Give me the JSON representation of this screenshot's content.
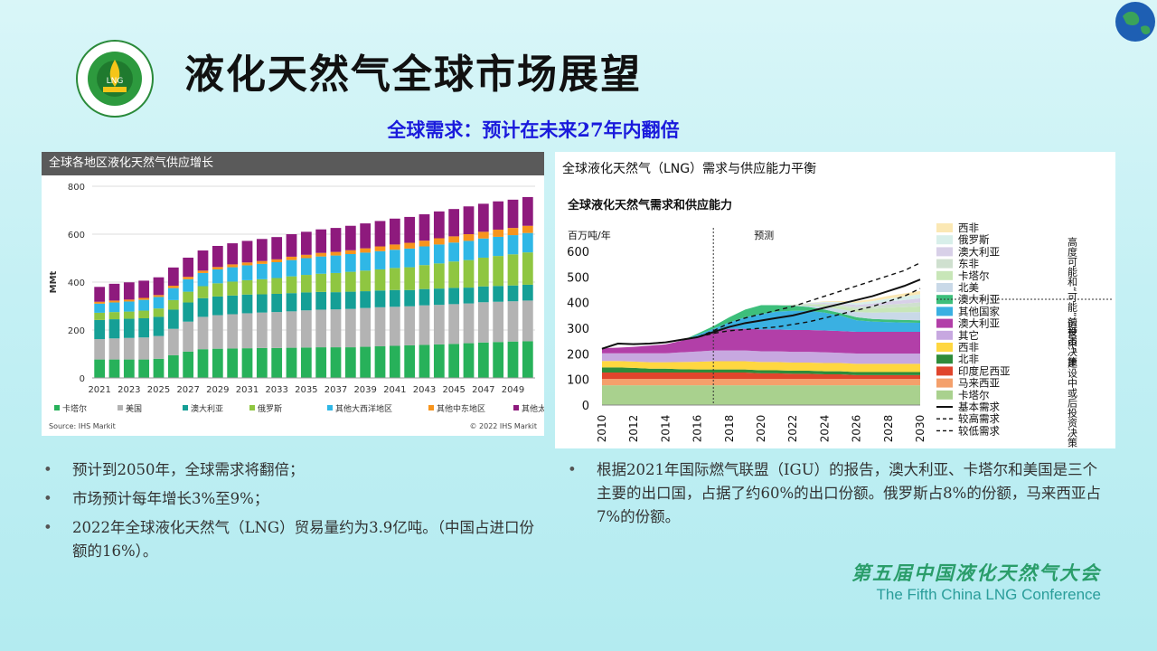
{
  "header": {
    "title": "液化天然气全球市场展望",
    "subtitle": "全球需求：预计在未来27年内翻倍"
  },
  "footer": {
    "conference_cn": "第五届中国液化天然气大会",
    "conference_en": "The Fifth China LNG Conference"
  },
  "left_bullets": [
    "预计到2050年，全球需求将翻倍；",
    "市场预计每年增长3%至9%；",
    "2022年全球液化天然气（LNG）贸易量约为3.9亿吨。（中国占进口份额的16%）。"
  ],
  "right_bullets": [
    "根据2021年国际燃气联盟（IGU）的报告，澳大利亚、卡塔尔和美国是三个主要的出口国，占据了约60%的出口份额。俄罗斯占8%的份额，马来西亚占7%的份额。"
  ],
  "colors": {
    "qatar": "#27b15a",
    "usa": "#b3b3b3",
    "australia": "#159f96",
    "russia": "#8fc641",
    "other_atlantic": "#2fb7e6",
    "other_mideast": "#f7941d",
    "other_asia_pacific": "#8e1a7d"
  },
  "chart_data": [
    {
      "type": "bar",
      "stacked": true,
      "title": "全球各地区液化天然气供应增长",
      "ylabel": "MMt",
      "ylim": [
        0,
        800
      ],
      "yticks": [
        0,
        200,
        400,
        600,
        800
      ],
      "categories": [
        "2021",
        "2022",
        "2023",
        "2024",
        "2025",
        "2026",
        "2027",
        "2028",
        "2029",
        "2030",
        "2031",
        "2032",
        "2033",
        "2034",
        "2035",
        "2036",
        "2037",
        "2038",
        "2039",
        "2040",
        "2041",
        "2042",
        "2043",
        "2044",
        "2045",
        "2046",
        "2047",
        "2048",
        "2049",
        "2050"
      ],
      "xticks": [
        "2021",
        "2023",
        "2025",
        "2027",
        "2029",
        "2031",
        "2033",
        "2035",
        "2037",
        "2039",
        "2041",
        "2043",
        "2045",
        "2047",
        "2049"
      ],
      "series": [
        {
          "name": "卡塔尔",
          "values": [
            77,
            77,
            77,
            77,
            80,
            95,
            110,
            120,
            122,
            123,
            124,
            125,
            125,
            126,
            127,
            128,
            128,
            128,
            130,
            132,
            134,
            136,
            138,
            140,
            142,
            145,
            148,
            150,
            152,
            153
          ]
        },
        {
          "name": "美国",
          "values": [
            85,
            88,
            90,
            92,
            95,
            110,
            125,
            135,
            140,
            143,
            146,
            148,
            150,
            152,
            155,
            157,
            158,
            160,
            162,
            163,
            163,
            163,
            165,
            165,
            166,
            166,
            168,
            168,
            168,
            170
          ]
        },
        {
          "name": "澳大利亚",
          "values": [
            80,
            80,
            80,
            80,
            80,
            80,
            80,
            78,
            78,
            78,
            78,
            76,
            76,
            76,
            75,
            74,
            72,
            72,
            70,
            70,
            70,
            68,
            68,
            68,
            68,
            66,
            66,
            66,
            66,
            66
          ]
        },
        {
          "name": "俄罗斯",
          "values": [
            30,
            30,
            30,
            32,
            35,
            40,
            45,
            50,
            55,
            58,
            60,
            63,
            66,
            70,
            73,
            76,
            80,
            83,
            86,
            88,
            92,
            95,
            100,
            105,
            110,
            115,
            120,
            125,
            130,
            135
          ]
        },
        {
          "name": "其他大西洋地区",
          "values": [
            38,
            40,
            42,
            45,
            48,
            50,
            52,
            55,
            58,
            60,
            62,
            64,
            66,
            68,
            70,
            72,
            73,
            74,
            75,
            76,
            76,
            78,
            78,
            79,
            79,
            80,
            80,
            80,
            80,
            81
          ]
        },
        {
          "name": "其他中东地区",
          "values": [
            8,
            8,
            8,
            8,
            8,
            10,
            10,
            10,
            10,
            12,
            12,
            12,
            12,
            14,
            14,
            15,
            15,
            16,
            18,
            20,
            22,
            24,
            24,
            26,
            26,
            28,
            28,
            30,
            30,
            30
          ]
        },
        {
          "name": "其他太平洋地区",
          "values": [
            62,
            70,
            72,
            72,
            74,
            76,
            80,
            84,
            88,
            88,
            90,
            92,
            93,
            94,
            96,
            98,
            100,
            102,
            104,
            106,
            108,
            108,
            110,
            112,
            114,
            116,
            117,
            118,
            118,
            120
          ]
        }
      ],
      "legend": [
        "卡塔尔",
        "美国",
        "澳大利亚",
        "俄罗斯",
        "其他大西洋地区",
        "其他中东地区",
        "其他太平洋地区"
      ],
      "source": "Source: IHS Markit",
      "copyright": "© 2022 IHS Markit"
    },
    {
      "type": "area",
      "stacked": true,
      "panel_title": "全球液化天然气（LNG）需求与供应能力平衡",
      "title": "全球液化天然气需求和供应能力",
      "ylabel": "百万吨/年",
      "ylim": [
        0,
        600
      ],
      "yticks": [
        0,
        100,
        200,
        300,
        400,
        500,
        600
      ],
      "x": [
        2010,
        2011,
        2012,
        2013,
        2014,
        2015,
        2016,
        2017,
        2018,
        2019,
        2020,
        2021,
        2022,
        2023,
        2024,
        2025,
        2026,
        2027,
        2028,
        2029,
        2030
      ],
      "xticks": [
        "2010",
        "2012",
        "2014",
        "2016",
        "2018",
        "2020",
        "2022",
        "2024",
        "2026",
        "2028",
        "2030"
      ],
      "forecast_label": "预测",
      "forecast_start": 2017,
      "group_labels": [
        "高度可能和“可能”前投资决策",
        "运营中，建设中或后投资决策"
      ],
      "series": [
        {
          "name": "卡塔尔",
          "color": "#a9d18e",
          "values": [
            77,
            77,
            77,
            77,
            77,
            77,
            77,
            77,
            77,
            77,
            77,
            77,
            77,
            77,
            77,
            77,
            77,
            77,
            77,
            77,
            77
          ]
        },
        {
          "name": "马来西亚",
          "color": "#f4a06b",
          "values": [
            25,
            25,
            25,
            25,
            25,
            25,
            25,
            25,
            25,
            25,
            25,
            25,
            25,
            25,
            25,
            25,
            25,
            25,
            25,
            25,
            25
          ]
        },
        {
          "name": "印度尼西亚",
          "color": "#e0452c",
          "values": [
            25,
            25,
            25,
            25,
            25,
            25,
            25,
            25,
            25,
            25,
            22,
            22,
            20,
            20,
            18,
            18,
            15,
            15,
            15,
            15,
            15
          ]
        },
        {
          "name": "北非",
          "color": "#2e8b3a",
          "values": [
            20,
            20,
            18,
            15,
            15,
            13,
            12,
            12,
            12,
            12,
            12,
            12,
            12,
            12,
            12,
            12,
            12,
            12,
            12,
            12,
            12
          ]
        },
        {
          "name": "西非",
          "color": "#ffd740",
          "values": [
            25,
            25,
            25,
            25,
            25,
            28,
            30,
            32,
            32,
            32,
            32,
            32,
            32,
            32,
            32,
            32,
            32,
            32,
            32,
            32,
            32
          ]
        },
        {
          "name": "其它",
          "color": "#c7a8e0",
          "values": [
            30,
            30,
            32,
            35,
            35,
            38,
            40,
            42,
            42,
            42,
            42,
            42,
            42,
            42,
            42,
            40,
            40,
            40,
            40,
            40,
            40
          ]
        },
        {
          "name": "澳大利亚",
          "color": "#b23fa8",
          "values": [
            20,
            22,
            25,
            30,
            35,
            45,
            60,
            75,
            85,
            85,
            85,
            85,
            85,
            85,
            85,
            85,
            85,
            85,
            85,
            85,
            85
          ]
        },
        {
          "name": "其他国家",
          "color": "#3ab0e2",
          "values": [
            0,
            0,
            0,
            0,
            0,
            0,
            5,
            10,
            25,
            45,
            60,
            70,
            75,
            75,
            70,
            60,
            45,
            40,
            38,
            36,
            35
          ]
        },
        {
          "name": "澳大利亚",
          "color": "#3dbf7b",
          "values": [
            0,
            0,
            0,
            0,
            0,
            0,
            5,
            10,
            20,
            30,
            35,
            25,
            20,
            15,
            12,
            10,
            12,
            10,
            10,
            10,
            10
          ]
        },
        {
          "name": "北美",
          "color": "#c9d9e8",
          "values": [
            0,
            0,
            0,
            0,
            0,
            0,
            0,
            0,
            0,
            0,
            0,
            0,
            2,
            5,
            10,
            15,
            20,
            25,
            28,
            30,
            32
          ]
        },
        {
          "name": "卡塔尔",
          "color": "#c8e6b8",
          "values": [
            0,
            0,
            0,
            0,
            0,
            0,
            0,
            0,
            0,
            0,
            0,
            0,
            2,
            5,
            8,
            10,
            12,
            15,
            18,
            20,
            22
          ]
        },
        {
          "name": "东非",
          "color": "#cfe0cf",
          "values": [
            0,
            0,
            0,
            0,
            0,
            0,
            0,
            0,
            0,
            0,
            0,
            0,
            0,
            2,
            4,
            6,
            8,
            10,
            12,
            14,
            16
          ]
        },
        {
          "name": "澳大利亚",
          "color": "#d8d0e8",
          "values": [
            0,
            0,
            0,
            0,
            0,
            0,
            0,
            0,
            0,
            0,
            0,
            0,
            0,
            2,
            4,
            6,
            8,
            10,
            12,
            14,
            16
          ]
        },
        {
          "name": "俄罗斯",
          "color": "#d8efea",
          "values": [
            0,
            0,
            0,
            0,
            0,
            0,
            0,
            0,
            0,
            0,
            0,
            0,
            0,
            2,
            4,
            6,
            8,
            10,
            12,
            14,
            16
          ]
        },
        {
          "name": "西非",
          "color": "#fbe8b4",
          "values": [
            0,
            0,
            0,
            0,
            0,
            0,
            0,
            0,
            0,
            0,
            0,
            0,
            0,
            0,
            2,
            4,
            6,
            8,
            10,
            12,
            12
          ]
        }
      ],
      "lines": [
        {
          "name": "基本需求",
          "style": "solid",
          "values": [
            220,
            240,
            238,
            240,
            245,
            255,
            265,
            285,
            305,
            320,
            330,
            340,
            350,
            365,
            380,
            395,
            410,
            425,
            445,
            465,
            490
          ]
        },
        {
          "name": "较高需求",
          "style": "dashed",
          "values": [
            220,
            240,
            238,
            240,
            245,
            255,
            265,
            290,
            320,
            340,
            355,
            370,
            385,
            405,
            425,
            445,
            465,
            485,
            505,
            525,
            555
          ]
        },
        {
          "name": "较低需求",
          "style": "dashed",
          "values": [
            220,
            240,
            238,
            240,
            245,
            255,
            265,
            280,
            290,
            295,
            300,
            305,
            315,
            325,
            340,
            355,
            370,
            385,
            405,
            425,
            455
          ]
        }
      ],
      "legend_order": [
        "西非",
        "俄罗斯",
        "澳大利亚",
        "东非",
        "卡塔尔",
        "北美",
        "澳大利亚",
        "其他国家",
        "澳大利亚",
        "其它",
        "西非",
        "北非",
        "印度尼西亚",
        "马来西亚",
        "卡塔尔",
        "基本需求",
        "较高需求",
        "较低需求"
      ]
    }
  ]
}
